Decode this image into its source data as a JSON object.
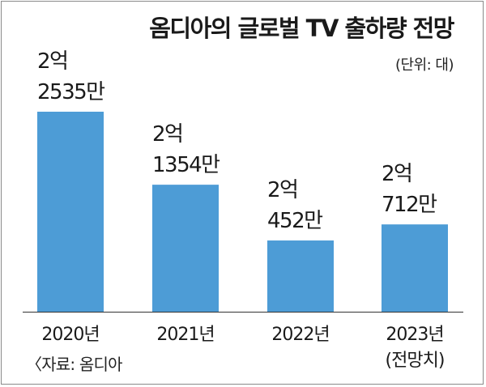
{
  "title": "옴디아의 글로벌 TV 출하량 전망",
  "unit": "(단위: 대)",
  "source": "〈자료: 옴디아",
  "colors": {
    "bar": "#4d9cd6",
    "baseline": "#333333"
  },
  "chart_data": {
    "type": "bar",
    "title": "옴디아의 글로벌 TV 출하량 전망",
    "ylabel": "(단위: 대)",
    "categories": [
      "2020년",
      "2021년",
      "2022년",
      "2023년"
    ],
    "category_notes": [
      "",
      "",
      "",
      "(전망치)"
    ],
    "values": [
      225350000,
      213540000,
      204520000,
      207120000
    ],
    "data_labels": [
      [
        "2억",
        "2535만"
      ],
      [
        "2억",
        "1354만"
      ],
      [
        "2억",
        "452만"
      ],
      [
        "2억",
        "712만"
      ]
    ],
    "ylim": [
      193000000,
      226000000
    ],
    "grid": false,
    "legend": "none"
  }
}
